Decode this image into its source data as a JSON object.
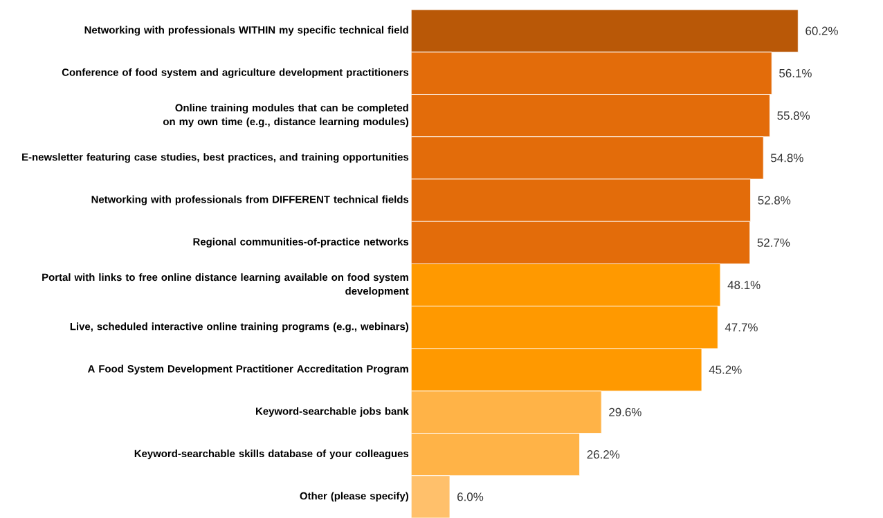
{
  "chart_data": {
    "type": "bar",
    "orientation": "horizontal",
    "categories": [
      "Networking with professionals WITHIN my specific technical field",
      "Conference of food system and agriculture development practitioners",
      "Online training modules that can be completed on my own time (e.g., distance learning modules)",
      "E-newsletter featuring case studies, best practices, and training opportunities",
      "Networking with professionals from DIFFERENT technical fields",
      "Regional communities-of-practice networks",
      "Portal with links to free online distance learning available on food system development",
      "Live, scheduled interactive online training programs (e.g., webinars)",
      "A Food System Development Practitioner Accreditation Program",
      "Keyword-searchable jobs bank",
      "Keyword-searchable skills database of your colleagues",
      "Other (please specify)"
    ],
    "values": [
      60.2,
      56.1,
      55.8,
      54.8,
      52.8,
      52.7,
      48.1,
      47.7,
      45.2,
      29.6,
      26.2,
      6.0
    ],
    "value_labels": [
      "60.2%",
      "56.1%",
      "55.8%",
      "54.8%",
      "52.8%",
      "52.7%",
      "48.1%",
      "47.7%",
      "45.2%",
      "29.6%",
      "26.2%",
      "6.0%"
    ],
    "colors": [
      "#b95807",
      "#e36c0a",
      "#e36c0a",
      "#e36c0a",
      "#e36c0a",
      "#e36c0a",
      "#ff9900",
      "#ff9900",
      "#ff9900",
      "#ffb347",
      "#ffb347",
      "#ffc06b"
    ],
    "tick_labels": "y"
  }
}
